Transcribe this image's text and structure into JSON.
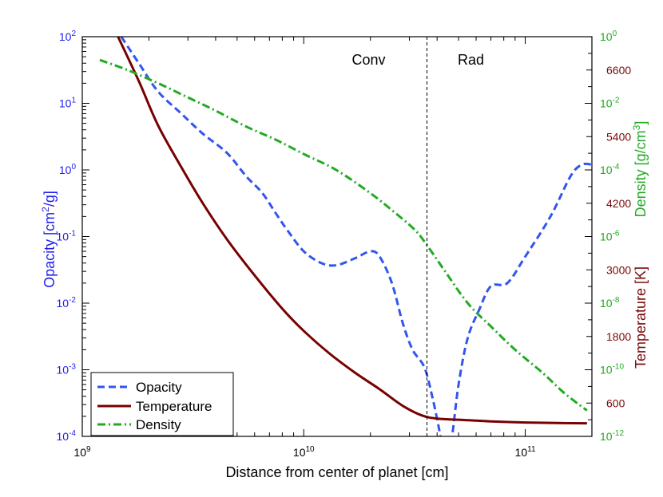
{
  "chart_data": {
    "type": "line",
    "xlabel": "Distance from center of planet [cm]",
    "x_scale": "log",
    "xlim": [
      1000000000.0,
      200000000000.0
    ],
    "x_ticks": [
      {
        "value": 1000000000.0,
        "base": "10",
        "exp": "9"
      },
      {
        "value": 10000000000.0,
        "base": "10",
        "exp": "10"
      },
      {
        "value": 100000000000.0,
        "base": "10",
        "exp": "11"
      }
    ],
    "axes": {
      "left": {
        "label_main": "Opacity [cm",
        "label_sup": "2",
        "label_end": "/g]",
        "scale": "log",
        "lim": [
          0.0001,
          100.0
        ],
        "color": "#2222ee",
        "ticks": [
          {
            "value": 0.0001,
            "base": "10",
            "exp": "-4"
          },
          {
            "value": 0.001,
            "base": "10",
            "exp": "-3"
          },
          {
            "value": 0.01,
            "base": "10",
            "exp": "-2"
          },
          {
            "value": 0.1,
            "base": "10",
            "exp": "-1"
          },
          {
            "value": 1.0,
            "base": "10",
            "exp": "0"
          },
          {
            "value": 10.0,
            "base": "10",
            "exp": "1"
          },
          {
            "value": 100.0,
            "base": "10",
            "exp": "2"
          }
        ]
      },
      "right_density": {
        "label_main": "Density [g/cm",
        "label_sup": "3",
        "label_end": "]",
        "scale": "log",
        "lim": [
          1e-12,
          1.0
        ],
        "color": "#22aa22",
        "ticks": [
          {
            "value": 1e-12,
            "base": "10",
            "exp": "-12"
          },
          {
            "value": 1e-10,
            "base": "10",
            "exp": "-10"
          },
          {
            "value": 1e-08,
            "base": "10",
            "exp": "-8"
          },
          {
            "value": 1e-06,
            "base": "10",
            "exp": "-6"
          },
          {
            "value": 0.0001,
            "base": "10",
            "exp": "-4"
          },
          {
            "value": 0.01,
            "base": "10",
            "exp": "-2"
          },
          {
            "value": 1.0,
            "base": "10",
            "exp": "0"
          }
        ]
      },
      "right_temperature": {
        "label": "Temperature [K]",
        "scale": "linear",
        "lim": [
          0,
          7200
        ],
        "color": "#7a0a0a",
        "ticks": [
          "600",
          "1800",
          "3000",
          "4200",
          "5400",
          "6600"
        ]
      }
    },
    "boundary": {
      "x": 36000000000.0,
      "left_label": "Conv",
      "right_label": "Rad"
    },
    "legend": {
      "position": "bottom-left",
      "entries": [
        "Opacity",
        "Temperature",
        "Density"
      ]
    },
    "series": [
      {
        "name": "Opacity",
        "axis": "left",
        "color": "#3355ee",
        "style": "dashed",
        "points": [
          [
            1500000000.0,
            100
          ],
          [
            1800000000.0,
            40
          ],
          [
            2200000000.0,
            15
          ],
          [
            2800000000.0,
            7
          ],
          [
            3500000000.0,
            3.5
          ],
          [
            4500000000.0,
            1.8
          ],
          [
            5500000000.0,
            0.8
          ],
          [
            6500000000.0,
            0.45
          ],
          [
            7500000000.0,
            0.22
          ],
          [
            8500000000.0,
            0.12
          ],
          [
            10000000000.0,
            0.06
          ],
          [
            12000000000.0,
            0.04
          ],
          [
            14000000000.0,
            0.037
          ],
          [
            17000000000.0,
            0.047
          ],
          [
            20000000000.0,
            0.06
          ],
          [
            22000000000.0,
            0.05
          ],
          [
            25000000000.0,
            0.02
          ],
          [
            28000000000.0,
            0.005
          ],
          [
            31000000000.0,
            0.002
          ],
          [
            35000000000.0,
            0.0011
          ],
          [
            38000000000.0,
            0.0004
          ],
          [
            41000000000.0,
            0.00012
          ],
          [
            43000000000.0,
            4.5e-05
          ],
          [
            46000000000.0,
            7e-05
          ],
          [
            50000000000.0,
            0.0006
          ],
          [
            55000000000.0,
            0.003
          ],
          [
            62000000000.0,
            0.008
          ],
          [
            70000000000.0,
            0.018
          ],
          [
            83000000000.0,
            0.02
          ],
          [
            100000000000.0,
            0.05
          ],
          [
            130000000000.0,
            0.2
          ],
          [
            160000000000.0,
            0.8
          ],
          [
            180000000000.0,
            1.2
          ],
          [
            200000000000.0,
            1.2
          ]
        ]
      },
      {
        "name": "Temperature",
        "axis": "right_temperature",
        "color": "#780000",
        "style": "solid",
        "points": [
          [
            1450000000.0,
            7200
          ],
          [
            1800000000.0,
            6400
          ],
          [
            2200000000.0,
            5600
          ],
          [
            2800000000.0,
            4850
          ],
          [
            3500000000.0,
            4200
          ],
          [
            4500000000.0,
            3550
          ],
          [
            6000000000.0,
            2900
          ],
          [
            8000000000.0,
            2300
          ],
          [
            10000000000.0,
            1900
          ],
          [
            13000000000.0,
            1500
          ],
          [
            17000000000.0,
            1150
          ],
          [
            22000000000.0,
            850
          ],
          [
            28000000000.0,
            550
          ],
          [
            34000000000.0,
            380
          ],
          [
            40000000000.0,
            320
          ],
          [
            50000000000.0,
            300
          ],
          [
            70000000000.0,
            270
          ],
          [
            100000000000.0,
            250
          ],
          [
            140000000000.0,
            240
          ],
          [
            190000000000.0,
            235
          ]
        ]
      },
      {
        "name": "Density",
        "axis": "right_density",
        "color": "#22aa22",
        "style": "dashdot",
        "points": [
          [
            1200000000.0,
            0.2
          ],
          [
            1600000000.0,
            0.1
          ],
          [
            2200000000.0,
            0.04
          ],
          [
            3000000000.0,
            0.015
          ],
          [
            4000000000.0,
            0.006
          ],
          [
            5500000000.0,
            0.002
          ],
          [
            7500000000.0,
            0.0008
          ],
          [
            10000000000.0,
            0.0003
          ],
          [
            14000000000.0,
            0.0001
          ],
          [
            20000000000.0,
            2e-05
          ],
          [
            26000000000.0,
            5e-06
          ],
          [
            32000000000.0,
            1.5e-06
          ],
          [
            36000000000.0,
            5.5e-07
          ],
          [
            43000000000.0,
            1e-07
          ],
          [
            55000000000.0,
            1e-08
          ],
          [
            70000000000.0,
            2e-09
          ],
          [
            90000000000.0,
            4e-10
          ],
          [
            120000000000.0,
            8e-11
          ],
          [
            150000000000.0,
            2e-11
          ],
          [
            190000000000.0,
            6e-12
          ]
        ]
      }
    ]
  }
}
